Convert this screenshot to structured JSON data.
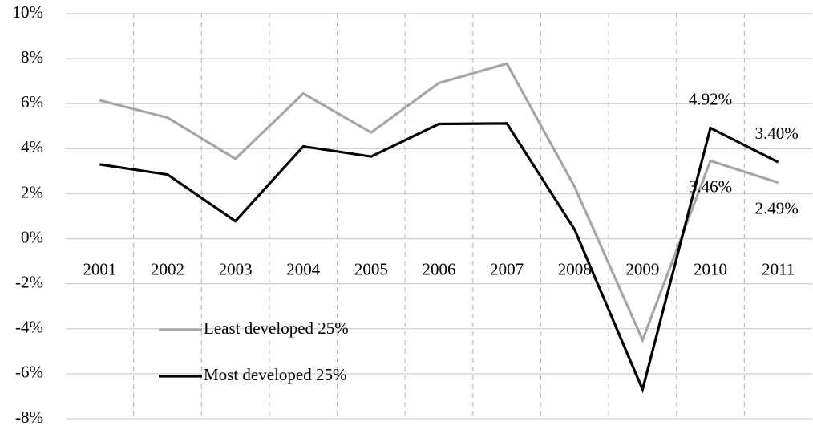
{
  "chart_data": {
    "type": "line",
    "categories": [
      "2001",
      "2002",
      "2003",
      "2004",
      "2005",
      "2006",
      "2007",
      "2008",
      "2009",
      "2010",
      "2011"
    ],
    "series": [
      {
        "name": "Least developed 25%",
        "color": "#a6a6a6",
        "values": [
          6.15,
          5.38,
          3.55,
          6.45,
          4.72,
          6.92,
          7.78,
          2.3,
          -4.5,
          3.46,
          2.49
        ],
        "value_labels": [
          null,
          null,
          null,
          null,
          null,
          null,
          null,
          null,
          null,
          "3.46%",
          "2.49%"
        ]
      },
      {
        "name": "Most developed 25%",
        "color": "#000000",
        "values": [
          3.3,
          2.85,
          0.78,
          4.1,
          3.65,
          5.1,
          5.12,
          0.4,
          -6.7,
          4.92,
          3.4
        ],
        "value_labels": [
          null,
          null,
          null,
          null,
          null,
          null,
          null,
          null,
          null,
          "4.92%",
          "3.40%"
        ]
      }
    ],
    "ylim": [
      -8,
      10
    ],
    "yticks": [
      {
        "value": -8,
        "label": "-8%"
      },
      {
        "value": -6,
        "label": "-6%"
      },
      {
        "value": -4,
        "label": "-4%"
      },
      {
        "value": -2,
        "label": "-2%"
      },
      {
        "value": 0,
        "label": "0%"
      },
      {
        "value": 2,
        "label": "2%"
      },
      {
        "value": 4,
        "label": "4%"
      },
      {
        "value": 6,
        "label": "6%"
      },
      {
        "value": 8,
        "label": "8%"
      },
      {
        "value": 10,
        "label": "10%"
      }
    ],
    "grid": true,
    "legend": "lower left"
  }
}
